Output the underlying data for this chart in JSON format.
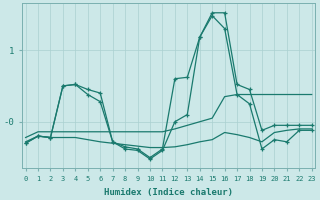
{
  "xlabel": "Humidex (Indice chaleur)",
  "background_color": "#cce8e8",
  "grid_color": "#aad0d0",
  "line_color": "#1a7a6e",
  "x_ticks": [
    0,
    1,
    2,
    3,
    4,
    5,
    6,
    7,
    8,
    9,
    10,
    11,
    12,
    13,
    14,
    15,
    16,
    17,
    18,
    19,
    20,
    21,
    22,
    23
  ],
  "ylim": [
    -0.65,
    1.65
  ],
  "xlim": [
    -0.3,
    23.3
  ],
  "series": [
    {
      "x": [
        0,
        1,
        2,
        3,
        4,
        5,
        6,
        7,
        8,
        9,
        10,
        11,
        12,
        13,
        14,
        15,
        16,
        17,
        18,
        19,
        20,
        21,
        22,
        23
      ],
      "y": [
        -0.3,
        -0.2,
        -0.22,
        0.5,
        0.52,
        0.45,
        0.4,
        -0.28,
        -0.35,
        -0.38,
        -0.5,
        -0.38,
        0.6,
        0.62,
        1.18,
        1.52,
        1.52,
        0.52,
        0.45,
        -0.12,
        -0.05,
        -0.05,
        -0.05,
        -0.05
      ],
      "marker": true
    },
    {
      "x": [
        0,
        1,
        2,
        3,
        4,
        5,
        6,
        7,
        8,
        9,
        10,
        11,
        12,
        13,
        14,
        15,
        16,
        17,
        18,
        19,
        20,
        21,
        22,
        23
      ],
      "y": [
        -0.22,
        -0.14,
        -0.14,
        -0.14,
        -0.14,
        -0.14,
        -0.14,
        -0.14,
        -0.14,
        -0.14,
        -0.14,
        -0.14,
        -0.1,
        -0.05,
        0.0,
        0.05,
        0.35,
        0.38,
        0.38,
        0.38,
        0.38,
        0.38,
        0.38,
        0.38
      ],
      "marker": false
    },
    {
      "x": [
        0,
        1,
        2,
        3,
        4,
        5,
        6,
        7,
        8,
        9,
        10,
        11,
        12,
        13,
        14,
        15,
        16,
        17,
        18,
        19,
        20,
        21,
        22,
        23
      ],
      "y": [
        -0.28,
        -0.2,
        -0.22,
        -0.22,
        -0.22,
        -0.25,
        -0.28,
        -0.3,
        -0.32,
        -0.34,
        -0.36,
        -0.36,
        -0.35,
        -0.32,
        -0.28,
        -0.25,
        -0.15,
        -0.18,
        -0.22,
        -0.28,
        -0.15,
        -0.12,
        -0.1,
        -0.1
      ],
      "marker": false
    },
    {
      "x": [
        0,
        1,
        2,
        3,
        4,
        5,
        6,
        7,
        8,
        9,
        10,
        11,
        12,
        13,
        14,
        15,
        16,
        17,
        18,
        19,
        20,
        21,
        22,
        23
      ],
      "y": [
        -0.3,
        -0.2,
        -0.22,
        0.5,
        0.52,
        0.38,
        0.28,
        -0.28,
        -0.38,
        -0.4,
        -0.52,
        -0.4,
        0.0,
        0.1,
        1.18,
        1.48,
        1.3,
        0.38,
        0.25,
        -0.38,
        -0.25,
        -0.28,
        -0.12,
        -0.12
      ],
      "marker": true
    }
  ]
}
